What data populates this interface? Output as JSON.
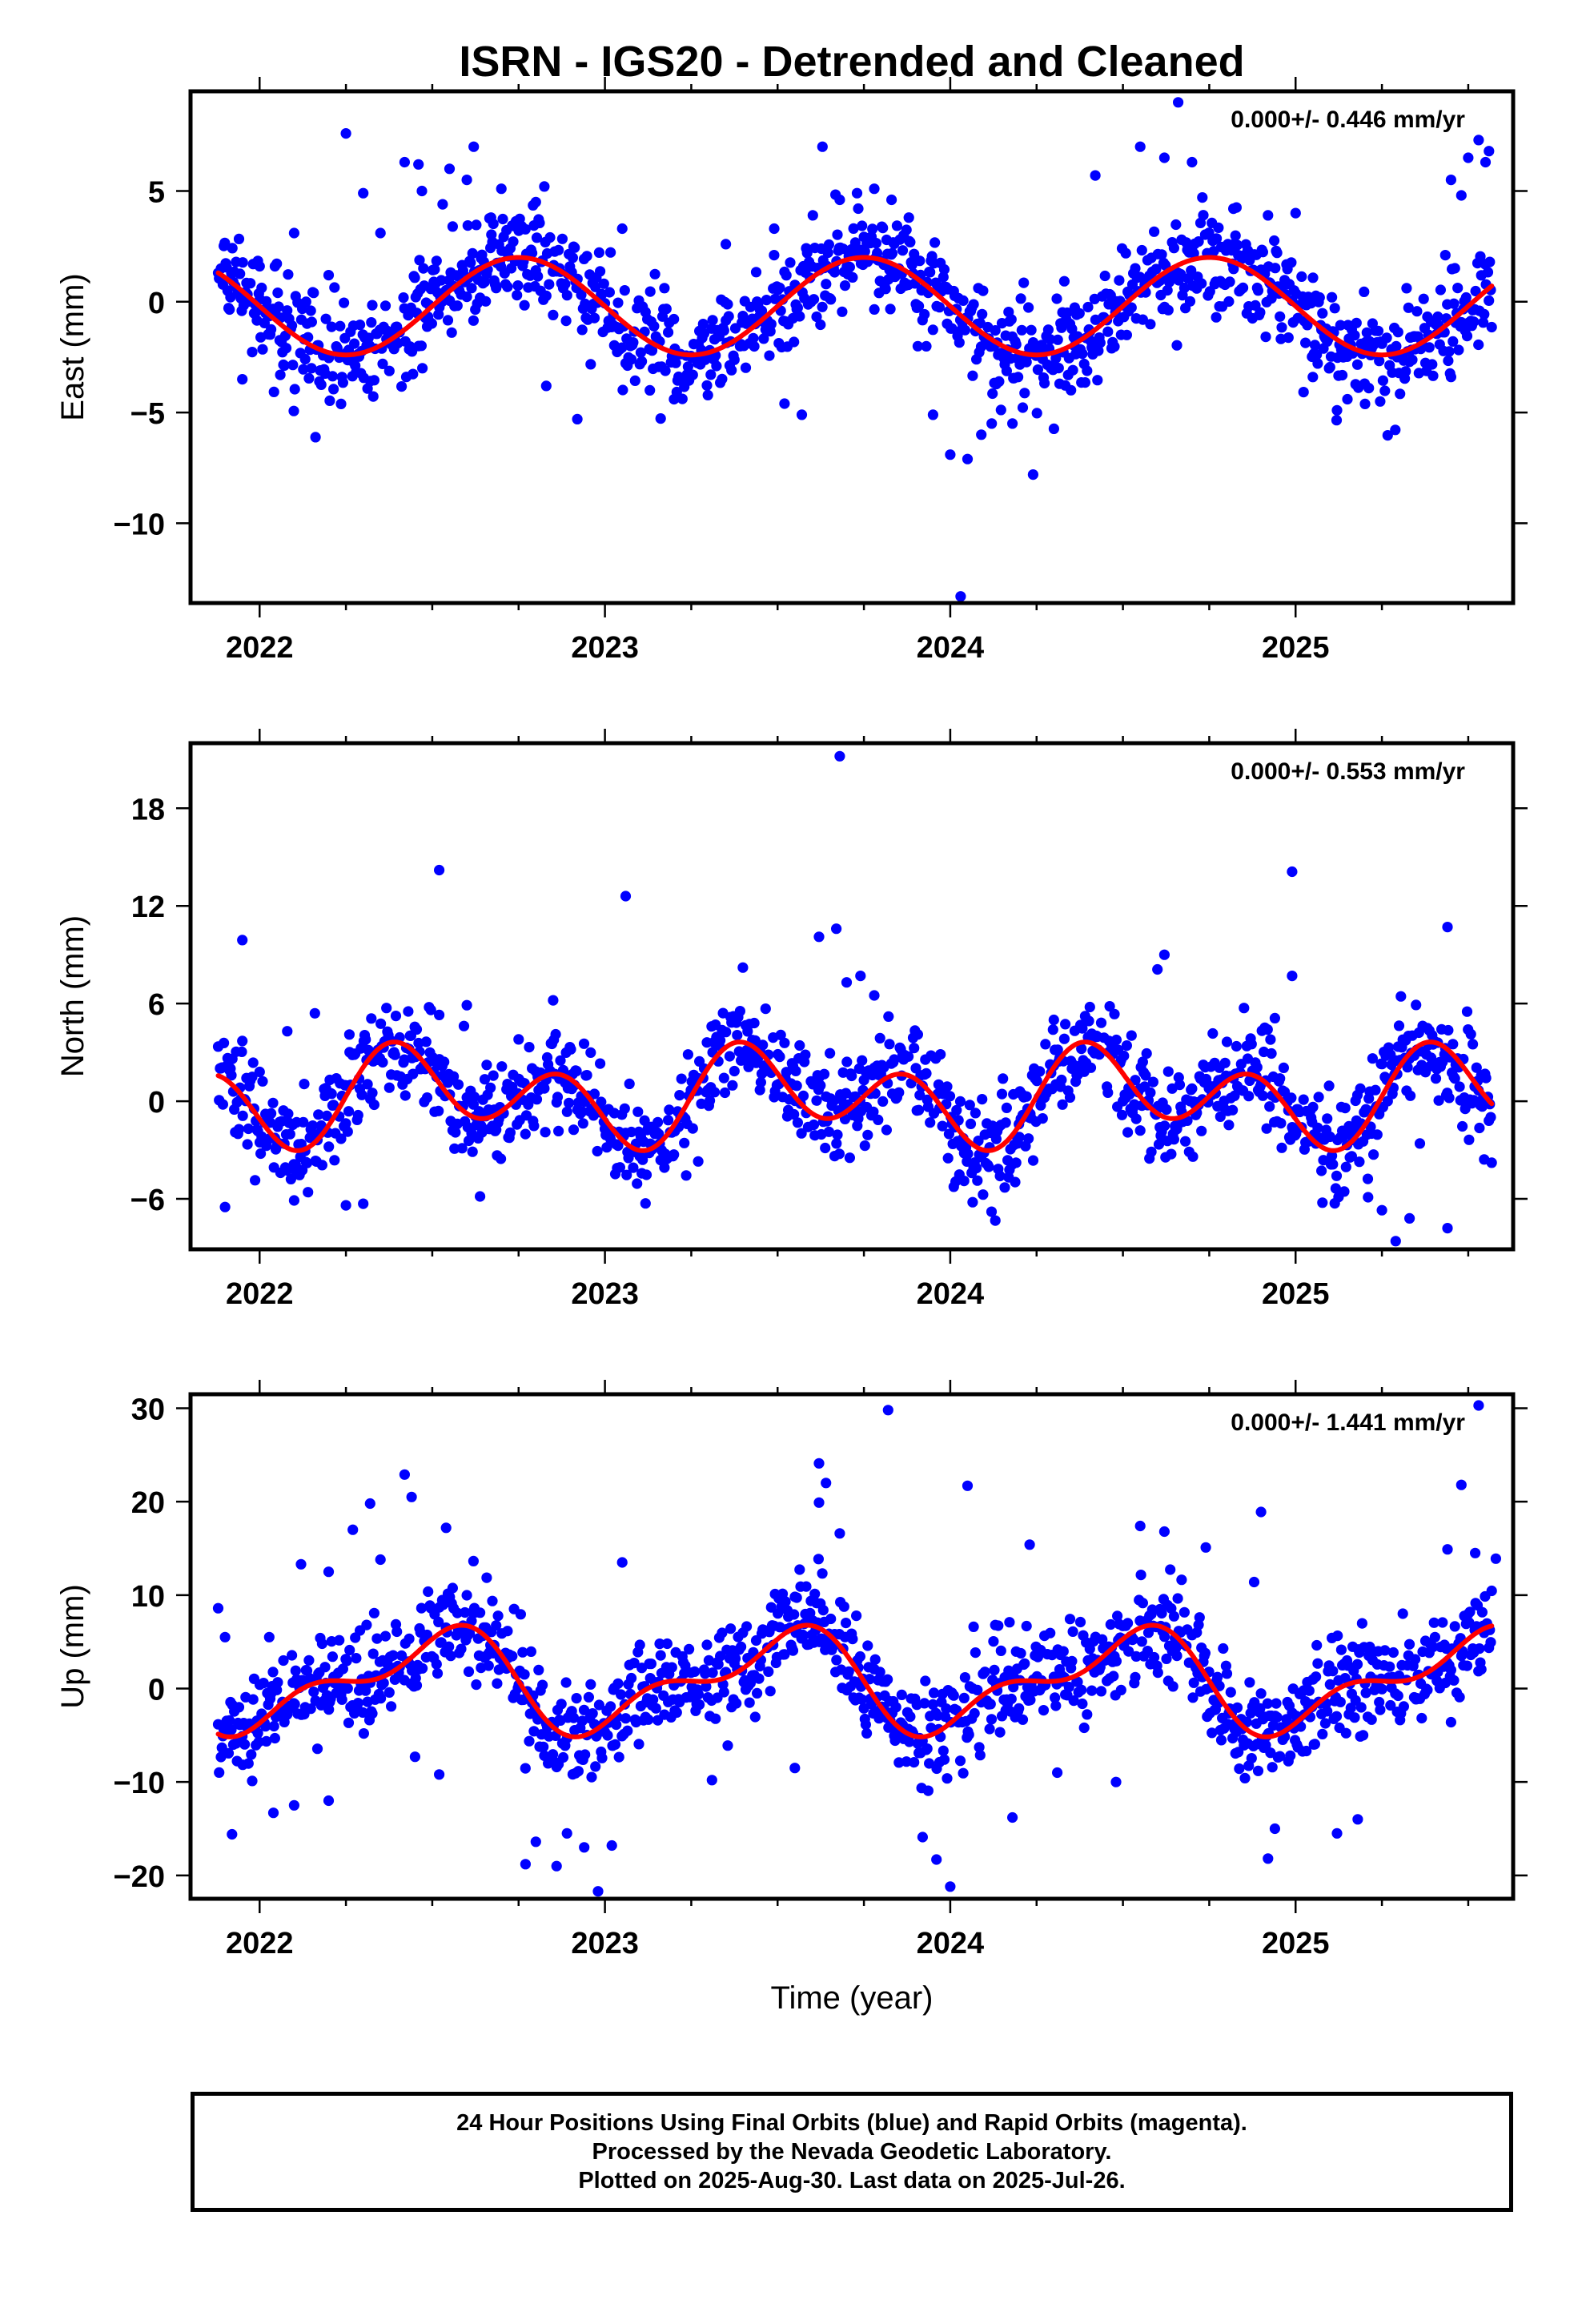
{
  "title": "ISRN - IGS20 - Detrended and Cleaned",
  "xlabel": "Time (year)",
  "colors": {
    "data": "#0000ff",
    "model": "#ff0000",
    "frame": "#000000"
  },
  "footer": {
    "line1": "24 Hour Positions Using Final Orbits (blue) and Rapid Orbits (magenta).",
    "line2": "Processed by the Nevada Geodetic Laboratory.",
    "line3": "Plotted on 2025-Aug-30. Last data on 2025-Jul-26."
  },
  "chart_data": [
    {
      "type": "scatter",
      "ylabel": "East (mm)",
      "rate_label": "0.000+/- 0.446 mm/yr",
      "xlim": [
        2021.8,
        2025.63
      ],
      "ylim": [
        -13.6,
        9.5
      ],
      "x_ticks": [
        2022,
        2023,
        2024,
        2025
      ],
      "y_ticks": [
        5,
        0,
        -5,
        -10
      ],
      "y_tick_labels": [
        "5",
        "0",
        "−5",
        "−10"
      ],
      "grid": false,
      "model": {
        "mean": -0.2,
        "a1": 0.0,
        "b1": -2.2,
        "a2": 0.0,
        "b2": 0.0
      },
      "series": [
        {
          "color": "#0000ff",
          "marker": "dot",
          "data_start": 2021.88,
          "data_end": 2025.57,
          "points": [
            [
              2022.25,
              7.6
            ],
            [
              2022.62,
              7.0
            ],
            [
              2022.42,
              6.3
            ],
            [
              2022.46,
              6.2
            ],
            [
              2022.55,
              6.0
            ],
            [
              2022.7,
              5.1
            ],
            [
              2022.8,
              4.5
            ],
            [
              2022.3,
              4.9
            ],
            [
              2021.95,
              -3.5
            ],
            [
              2022.15,
              -3.0
            ],
            [
              2022.6,
              5.5
            ],
            [
              2022.53,
              4.4
            ],
            [
              2022.67,
              3.8
            ],
            [
              2022.85,
              -0.6
            ],
            [
              2023.05,
              3.3
            ],
            [
              2023.2,
              -4.4
            ],
            [
              2022.92,
              -5.3
            ],
            [
              2022.83,
              -3.8
            ],
            [
              2023.13,
              -4.0
            ],
            [
              2023.35,
              2.6
            ],
            [
              2023.49,
              3.3
            ],
            [
              2023.52,
              -4.6
            ],
            [
              2023.57,
              -5.1
            ],
            [
              2023.63,
              7.0
            ],
            [
              2023.78,
              5.1
            ],
            [
              2023.83,
              4.6
            ],
            [
              2023.68,
              4.6
            ],
            [
              2023.73,
              4.9
            ],
            [
              2023.88,
              3.8
            ],
            [
              2023.95,
              -5.1
            ],
            [
              2024.0,
              -6.9
            ],
            [
              2024.05,
              -7.1
            ],
            [
              2024.12,
              -5.5
            ],
            [
              2024.18,
              -5.5
            ],
            [
              2024.24,
              -7.8
            ],
            [
              2024.03,
              -13.3
            ],
            [
              2024.09,
              -6.0
            ],
            [
              2024.36,
              -2.0
            ],
            [
              2024.42,
              5.7
            ],
            [
              2024.55,
              7.0
            ],
            [
              2024.62,
              6.5
            ],
            [
              2024.7,
              6.3
            ],
            [
              2024.66,
              9.0
            ],
            [
              2024.77,
              -0.7
            ],
            [
              2024.82,
              4.2
            ],
            [
              2024.92,
              3.9
            ],
            [
              2025.0,
              4.0
            ],
            [
              2025.05,
              -3.4
            ],
            [
              2025.12,
              -4.9
            ],
            [
              2025.15,
              -4.4
            ],
            [
              2025.2,
              -3.7
            ],
            [
              2025.3,
              -2.4
            ],
            [
              2025.45,
              5.5
            ],
            [
              2025.5,
              6.5
            ],
            [
              2025.53,
              7.3
            ],
            [
              2025.56,
              6.8
            ],
            [
              2025.55,
              6.3
            ],
            [
              2025.48,
              4.8
            ],
            [
              2025.28,
              -3.2
            ],
            [
              2022.0,
              1.6
            ],
            [
              2022.06,
              -3.3
            ],
            [
              2022.1,
              3.1
            ],
            [
              2022.2,
              1.2
            ],
            [
              2022.35,
              3.1
            ],
            [
              2022.47,
              5.0
            ]
          ]
        }
      ]
    },
    {
      "type": "scatter",
      "ylabel": "North (mm)",
      "rate_label": "0.000+/- 0.553 mm/yr",
      "xlim": [
        2021.8,
        2025.63
      ],
      "ylim": [
        -9.1,
        22.0
      ],
      "x_ticks": [
        2022,
        2023,
        2024,
        2025
      ],
      "y_ticks": [
        18,
        12,
        6,
        0,
        -6
      ],
      "y_tick_labels": [
        "18",
        "12",
        "6",
        "0",
        "−6"
      ],
      "grid": false,
      "model": {
        "mean": 0.3,
        "a1": -1.4,
        "b1": 0.0,
        "a2": 0.0,
        "b2": -2.3
      },
      "series": [
        {
          "color": "#0000ff",
          "marker": "dot",
          "data_start": 2021.88,
          "data_end": 2025.57,
          "points": [
            [
              2023.68,
              21.2
            ],
            [
              2022.52,
              14.2
            ],
            [
              2023.06,
              12.6
            ],
            [
              2024.99,
              14.1
            ],
            [
              2025.44,
              10.7
            ],
            [
              2021.95,
              9.9
            ],
            [
              2023.62,
              10.1
            ],
            [
              2023.67,
              10.6
            ],
            [
              2024.62,
              9.0
            ],
            [
              2024.6,
              8.1
            ],
            [
              2024.99,
              7.7
            ],
            [
              2024.94,
              5.1
            ],
            [
              2023.74,
              7.7
            ],
            [
              2023.7,
              7.3
            ],
            [
              2023.78,
              6.5
            ],
            [
              2022.16,
              5.4
            ],
            [
              2022.26,
              4.1
            ],
            [
              2022.52,
              5.3
            ],
            [
              2022.6,
              5.9
            ],
            [
              2022.85,
              6.2
            ],
            [
              2024.3,
              5.0
            ],
            [
              2024.46,
              3.7
            ],
            [
              2025.36,
              -2.6
            ],
            [
              2025.44,
              -7.8
            ],
            [
              2025.29,
              -8.6
            ],
            [
              2025.33,
              -7.2
            ],
            [
              2025.25,
              -6.7
            ],
            [
              2025.21,
              -5.9
            ],
            [
              2022.3,
              -6.3
            ],
            [
              2022.25,
              -6.4
            ],
            [
              2021.9,
              -6.5
            ],
            [
              2022.1,
              -6.1
            ],
            [
              2024.04,
              -4.9
            ],
            [
              2023.27,
              -3.7
            ],
            [
              2022.08,
              4.3
            ],
            [
              2022.0,
              1.8
            ],
            [
              2021.95,
              3.7
            ],
            [
              2022.75,
              3.8
            ],
            [
              2023.45,
              3.0
            ],
            [
              2024.2,
              -2.2
            ],
            [
              2024.55,
              -1.8
            ]
          ]
        }
      ]
    },
    {
      "type": "scatter",
      "ylabel": "Up (mm)",
      "rate_label": "0.000+/- 1.441 mm/yr",
      "xlim": [
        2021.8,
        2025.63
      ],
      "ylim": [
        -22.5,
        31.5
      ],
      "x_ticks": [
        2022,
        2023,
        2024,
        2025
      ],
      "y_ticks": [
        30,
        20,
        10,
        0,
        -10,
        -20
      ],
      "y_tick_labels": [
        "30",
        "20",
        "10",
        "0",
        "−10",
        "−20"
      ],
      "grid": false,
      "model": {
        "mean": 0.8,
        "a1": -4.5,
        "b1": 0.0,
        "a2": 0.0,
        "b2": 2.4
      },
      "series": [
        {
          "color": "#0000ff",
          "marker": "dot",
          "data_start": 2021.88,
          "data_end": 2025.57,
          "points": [
            [
              2025.53,
              30.3
            ],
            [
              2023.82,
              29.8
            ],
            [
              2022.42,
              22.9
            ],
            [
              2023.62,
              24.1
            ],
            [
              2023.64,
              22.0
            ],
            [
              2024.05,
              21.7
            ],
            [
              2025.48,
              21.8
            ],
            [
              2022.44,
              20.5
            ],
            [
              2024.9,
              18.9
            ],
            [
              2022.32,
              19.8
            ],
            [
              2023.62,
              19.9
            ],
            [
              2024.55,
              17.4
            ],
            [
              2024.62,
              16.8
            ],
            [
              2022.27,
              17.0
            ],
            [
              2022.54,
              17.2
            ],
            [
              2022.12,
              13.3
            ],
            [
              2022.2,
              12.5
            ],
            [
              2022.35,
              13.8
            ],
            [
              2023.68,
              16.6
            ],
            [
              2024.23,
              15.4
            ],
            [
              2023.05,
              13.5
            ],
            [
              2024.88,
              11.4
            ],
            [
              2024.74,
              15.1
            ],
            [
              2025.44,
              14.9
            ],
            [
              2025.52,
              14.5
            ],
            [
              2025.58,
              13.9
            ],
            [
              2021.92,
              -15.6
            ],
            [
              2022.04,
              -13.3
            ],
            [
              2022.1,
              -12.5
            ],
            [
              2022.2,
              -12.0
            ],
            [
              2022.77,
              -18.8
            ],
            [
              2022.8,
              -16.4
            ],
            [
              2022.86,
              -19.0
            ],
            [
              2022.89,
              -15.5
            ],
            [
              2022.98,
              -21.7
            ],
            [
              2022.94,
              -17.0
            ],
            [
              2023.02,
              -16.8
            ],
            [
              2024.0,
              -21.2
            ],
            [
              2023.96,
              -18.3
            ],
            [
              2023.92,
              -15.9
            ],
            [
              2024.18,
              -13.8
            ],
            [
              2024.92,
              -18.2
            ],
            [
              2025.12,
              -15.5
            ],
            [
              2025.18,
              -14.0
            ],
            [
              2022.45,
              -7.3
            ],
            [
              2022.52,
              -9.2
            ],
            [
              2024.48,
              -10.0
            ],
            [
              2025.45,
              -3.6
            ],
            [
              2021.88,
              8.6
            ],
            [
              2021.9,
              5.5
            ],
            [
              2021.95,
              -5.1
            ],
            [
              2023.31,
              -9.8
            ],
            [
              2023.55,
              -8.5
            ],
            [
              2024.31,
              -9.0
            ],
            [
              2024.94,
              -15.0
            ]
          ]
        }
      ]
    }
  ]
}
